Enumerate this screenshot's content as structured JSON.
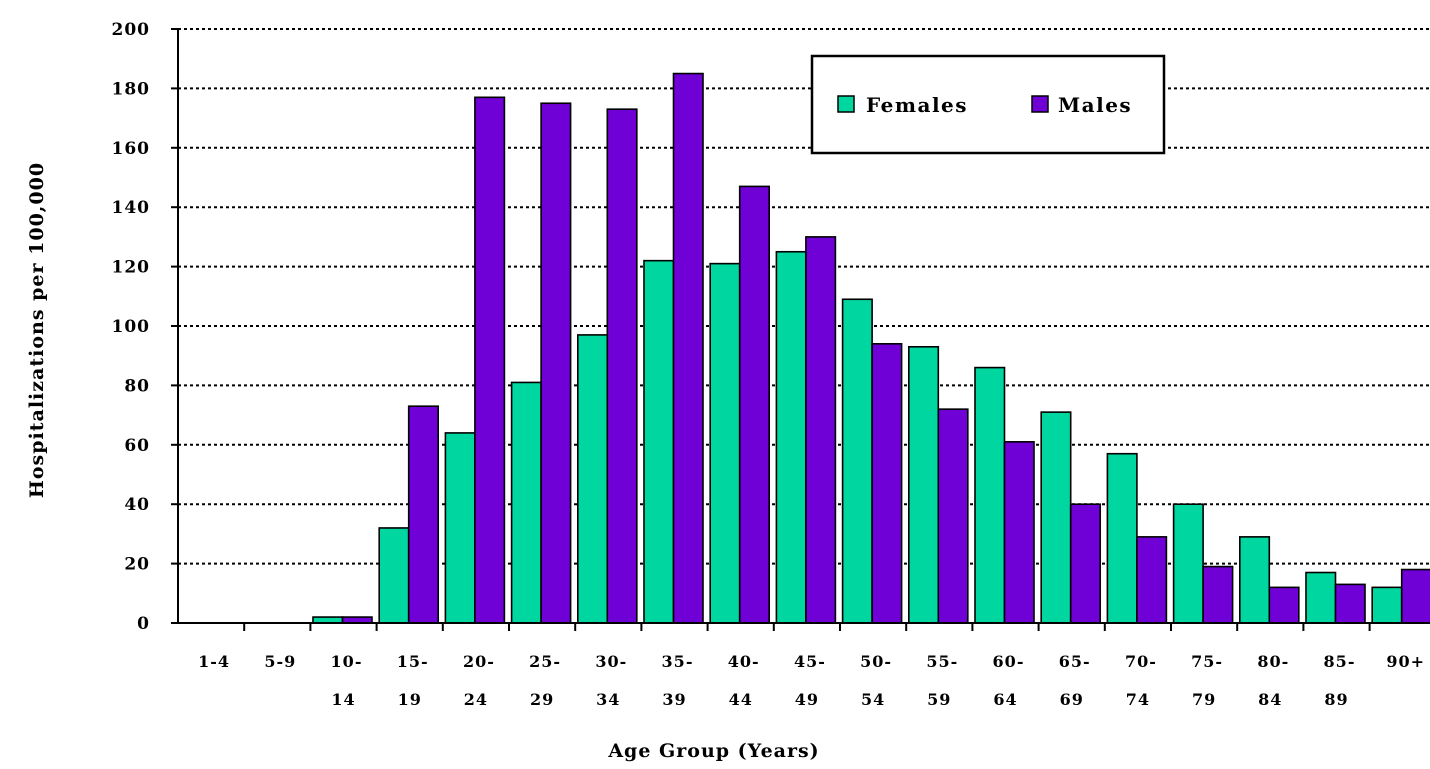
{
  "chart_data": {
    "type": "bar",
    "title": "",
    "xlabel": "Age Group (Years)",
    "ylabel": "Hospitalizations per 100,000",
    "ylim": [
      0,
      200
    ],
    "yticks": [
      0,
      20,
      40,
      60,
      80,
      100,
      120,
      140,
      160,
      180,
      200
    ],
    "grid": "horizontal dotted",
    "legend_position": "top-right",
    "categories": [
      {
        "line1": "1-4",
        "line2": ""
      },
      {
        "line1": "5-9",
        "line2": ""
      },
      {
        "line1": "10-",
        "line2": "14"
      },
      {
        "line1": "15-",
        "line2": "19"
      },
      {
        "line1": "20-",
        "line2": "24"
      },
      {
        "line1": "25-",
        "line2": "29"
      },
      {
        "line1": "30-",
        "line2": "34"
      },
      {
        "line1": "35-",
        "line2": "39"
      },
      {
        "line1": "40-",
        "line2": "44"
      },
      {
        "line1": "45-",
        "line2": "49"
      },
      {
        "line1": "50-",
        "line2": "54"
      },
      {
        "line1": "55-",
        "line2": "59"
      },
      {
        "line1": "60-",
        "line2": "64"
      },
      {
        "line1": "65-",
        "line2": "69"
      },
      {
        "line1": "70-",
        "line2": "74"
      },
      {
        "line1": "75-",
        "line2": "79"
      },
      {
        "line1": "80-",
        "line2": "84"
      },
      {
        "line1": "85-",
        "line2": "89"
      },
      {
        "line1": "90+",
        "line2": ""
      }
    ],
    "series": [
      {
        "name": "Females",
        "color": "#00d6a0",
        "values": [
          0,
          0,
          2,
          32,
          64,
          81,
          97,
          122,
          121,
          125,
          109,
          93,
          86,
          71,
          57,
          40,
          29,
          17,
          12
        ]
      },
      {
        "name": "Males",
        "color": "#6f00d6",
        "values": [
          0,
          0,
          2,
          73,
          177,
          175,
          173,
          185,
          147,
          130,
          94,
          72,
          61,
          40,
          29,
          19,
          12,
          13,
          18
        ]
      }
    ]
  }
}
